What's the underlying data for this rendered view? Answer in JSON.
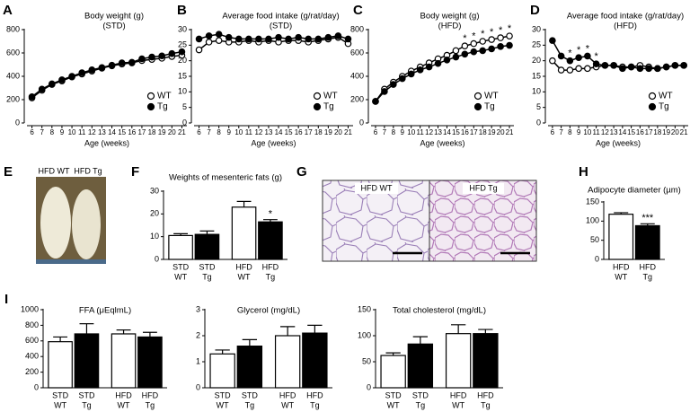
{
  "chart_data": [
    {
      "type": "line",
      "panel": "A",
      "title": "Body weight (g)",
      "subtitle": "(STD)",
      "x_label": "Age (weeks)",
      "x": [
        6,
        7,
        8,
        9,
        10,
        11,
        12,
        13,
        14,
        15,
        16,
        17,
        18,
        19,
        20,
        21
      ],
      "xlim": [
        5.5,
        21.5
      ],
      "xticks": [
        6,
        7,
        8,
        9,
        10,
        11,
        12,
        13,
        14,
        15,
        16,
        17,
        18,
        19,
        20,
        21
      ],
      "ylim": [
        0,
        800
      ],
      "yticks": [
        0,
        200,
        400,
        600,
        800
      ],
      "legend": "lower right",
      "series": [
        {
          "name": "WT",
          "color": "#ffffff",
          "values": [
            215,
            280,
            330,
            360,
            395,
            420,
            445,
            470,
            490,
            505,
            515,
            535,
            545,
            555,
            570,
            580
          ]
        },
        {
          "name": "Tg",
          "color": "#000000",
          "values": [
            225,
            290,
            335,
            370,
            400,
            430,
            455,
            475,
            495,
            515,
            520,
            550,
            565,
            575,
            595,
            610
          ]
        }
      ]
    },
    {
      "type": "line",
      "panel": "B",
      "title": "Average food intake (g/rat/day)",
      "subtitle": "(STD)",
      "x_label": "Age (weeks)",
      "x": [
        6,
        7,
        8,
        9,
        10,
        11,
        12,
        13,
        14,
        15,
        16,
        17,
        18,
        19,
        20,
        21
      ],
      "xlim": [
        5.5,
        21.5
      ],
      "xticks": [
        6,
        7,
        8,
        9,
        10,
        11,
        12,
        13,
        14,
        15,
        16,
        17,
        18,
        19,
        20,
        21
      ],
      "ylim": [
        0,
        30
      ],
      "yticks": [
        0,
        5,
        10,
        15,
        20,
        25,
        30
      ],
      "legend": "lower right",
      "series": [
        {
          "name": "WT",
          "color": "#ffffff",
          "values": [
            23.5,
            26,
            26.5,
            26,
            26,
            26.5,
            26,
            26.5,
            26,
            26.5,
            26.5,
            26,
            26.5,
            27,
            27.5,
            25.5
          ]
        },
        {
          "name": "Tg",
          "color": "#000000",
          "values": [
            27,
            28,
            28.5,
            27.5,
            27,
            27,
            27,
            27,
            27.5,
            27,
            27.5,
            27,
            27,
            27.5,
            28,
            27
          ]
        }
      ]
    },
    {
      "type": "line",
      "panel": "C",
      "title": "Body weight (g)",
      "subtitle": "(HFD)",
      "x_label": "Age (weeks)",
      "x": [
        6,
        7,
        8,
        9,
        10,
        11,
        12,
        13,
        14,
        15,
        16,
        17,
        18,
        19,
        20,
        21
      ],
      "xlim": [
        5.5,
        21.5
      ],
      "xticks": [
        6,
        7,
        8,
        9,
        10,
        11,
        12,
        13,
        14,
        15,
        16,
        17,
        18,
        19,
        20,
        21
      ],
      "ylim": [
        0,
        800
      ],
      "yticks": [
        0,
        200,
        400,
        600,
        800
      ],
      "legend": "lower right",
      "significance": [
        null,
        null,
        null,
        null,
        null,
        null,
        null,
        null,
        null,
        null,
        "*",
        "*",
        "*",
        "*",
        "*",
        "*"
      ],
      "series": [
        {
          "name": "WT",
          "color": "#ffffff",
          "values": [
            185,
            290,
            350,
            400,
            445,
            480,
            515,
            550,
            580,
            620,
            660,
            680,
            700,
            715,
            730,
            745
          ]
        },
        {
          "name": "Tg",
          "color": "#000000",
          "values": [
            185,
            270,
            330,
            380,
            420,
            455,
            480,
            510,
            540,
            565,
            590,
            610,
            620,
            635,
            655,
            665
          ]
        }
      ]
    },
    {
      "type": "line",
      "panel": "D",
      "title": "Average food intake (g/rat/day)",
      "subtitle": "(HFD)",
      "x_label": "Age (weeks)",
      "x": [
        6,
        7,
        8,
        9,
        10,
        11,
        12,
        13,
        14,
        15,
        16,
        17,
        18,
        19,
        20,
        21
      ],
      "xlim": [
        5.5,
        21.5
      ],
      "xticks": [
        6,
        7,
        8,
        9,
        10,
        11,
        12,
        13,
        14,
        15,
        16,
        17,
        18,
        19,
        20,
        21
      ],
      "ylim": [
        0,
        30
      ],
      "yticks": [
        0,
        5,
        10,
        15,
        20,
        25,
        30
      ],
      "legend": "lower right",
      "significance": [
        null,
        null,
        "*",
        "*",
        "*",
        "*",
        null,
        null,
        null,
        null,
        null,
        null,
        null,
        null,
        null,
        null
      ],
      "series": [
        {
          "name": "WT",
          "color": "#ffffff",
          "values": [
            20,
            17,
            17,
            17.5,
            17.5,
            18,
            18.5,
            18.5,
            18,
            18,
            18.5,
            18,
            17.5,
            18,
            18.5,
            18.5
          ]
        },
        {
          "name": "Tg",
          "color": "#000000",
          "values": [
            26.5,
            21.5,
            20,
            21,
            21.5,
            19,
            18.5,
            18.5,
            17.5,
            18,
            17.5,
            17.5,
            17.5,
            18,
            18.5,
            18.5
          ]
        }
      ]
    },
    {
      "type": "bar",
      "panel": "F",
      "title": "Weights of mesenteric fats (g)",
      "categories": [
        [
          "STD",
          "WT"
        ],
        [
          "STD",
          "Tg"
        ],
        [
          "HFD",
          "WT"
        ],
        [
          "HFD",
          "Tg"
        ]
      ],
      "values": [
        10.5,
        11,
        23,
        16.5
      ],
      "errors": [
        0.8,
        1.5,
        2.5,
        1
      ],
      "colors": [
        "#ffffff",
        "#000000",
        "#ffffff",
        "#000000"
      ],
      "significance": [
        null,
        null,
        null,
        "*"
      ],
      "ylim": [
        0,
        30
      ],
      "yticks": [
        0,
        10,
        20,
        30
      ]
    },
    {
      "type": "bar",
      "panel": "H",
      "title": "Adipocyte diameter (µm)",
      "categories": [
        [
          "HFD",
          "WT"
        ],
        [
          "HFD",
          "Tg"
        ]
      ],
      "values": [
        118,
        88
      ],
      "errors": [
        4,
        5
      ],
      "colors": [
        "#ffffff",
        "#000000"
      ],
      "significance": [
        null,
        "***"
      ],
      "ylim": [
        0,
        150
      ],
      "yticks": [
        0,
        50,
        100,
        150
      ]
    },
    {
      "type": "bar",
      "panel": "I",
      "title": "FFA (μEqlmL)",
      "categories": [
        [
          "STD",
          "WT"
        ],
        [
          "STD",
          "Tg"
        ],
        [
          "HFD",
          "WT"
        ],
        [
          "HFD",
          "Tg"
        ]
      ],
      "values": [
        590,
        690,
        690,
        650
      ],
      "errors": [
        60,
        130,
        50,
        60
      ],
      "colors": [
        "#ffffff",
        "#000000",
        "#ffffff",
        "#000000"
      ],
      "ylim": [
        0,
        1000
      ],
      "yticks": [
        0,
        200,
        400,
        600,
        800,
        1000
      ]
    },
    {
      "type": "bar",
      "title": "Glycerol (mg/dL)",
      "categories": [
        [
          "STD",
          "WT"
        ],
        [
          "STD",
          "Tg"
        ],
        [
          "HFD",
          "WT"
        ],
        [
          "HFD",
          "Tg"
        ]
      ],
      "values": [
        1.3,
        1.6,
        2.0,
        2.1
      ],
      "errors": [
        0.15,
        0.25,
        0.35,
        0.3
      ],
      "colors": [
        "#ffffff",
        "#000000",
        "#ffffff",
        "#000000"
      ],
      "ylim": [
        0,
        3
      ],
      "yticks": [
        0,
        1,
        2,
        3
      ]
    },
    {
      "type": "bar",
      "title": "Total cholesterol (mg/dL)",
      "categories": [
        [
          "STD",
          "WT"
        ],
        [
          "STD",
          "Tg"
        ],
        [
          "HFD",
          "WT"
        ],
        [
          "HFD",
          "Tg"
        ]
      ],
      "values": [
        62,
        84,
        104,
        104
      ],
      "errors": [
        5,
        14,
        17,
        8
      ],
      "colors": [
        "#ffffff",
        "#000000",
        "#ffffff",
        "#000000"
      ],
      "ylim": [
        0,
        150
      ],
      "yticks": [
        0,
        50,
        100,
        150
      ]
    }
  ],
  "images": [
    {
      "panel": "E",
      "labels": [
        "HFD WT",
        "HFD Tg"
      ]
    },
    {
      "panel": "G",
      "labels": [
        "HFD WT",
        "HFD Tg"
      ]
    }
  ]
}
